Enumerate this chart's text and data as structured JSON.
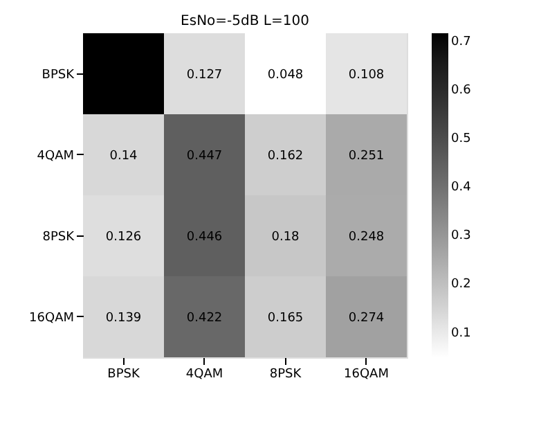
{
  "chart_data": {
    "type": "heatmap",
    "title": "EsNo=-5dB L=100",
    "categories": [
      "BPSK",
      "4QAM",
      "8PSK",
      "16QAM"
    ],
    "y_categories": [
      "BPSK",
      "4QAM",
      "8PSK",
      "16QAM"
    ],
    "cells": [
      [
        0.715,
        0.127,
        0.048,
        0.108
      ],
      [
        0.14,
        0.447,
        0.162,
        0.251
      ],
      [
        0.126,
        0.446,
        0.18,
        0.248
      ],
      [
        0.139,
        0.422,
        0.165,
        0.274
      ]
    ],
    "cell_labels": [
      [
        null,
        "0.127",
        "0.048",
        "0.108"
      ],
      [
        "0.14",
        "0.447",
        "0.162",
        "0.251"
      ],
      [
        "0.126",
        "0.446",
        "0.18",
        "0.248"
      ],
      [
        "0.139",
        "0.422",
        "0.165",
        "0.274"
      ]
    ],
    "clim": [
      0.048,
      0.715
    ],
    "cticks": [
      0.1,
      0.2,
      0.3,
      0.4,
      0.5,
      0.6,
      0.7
    ]
  }
}
